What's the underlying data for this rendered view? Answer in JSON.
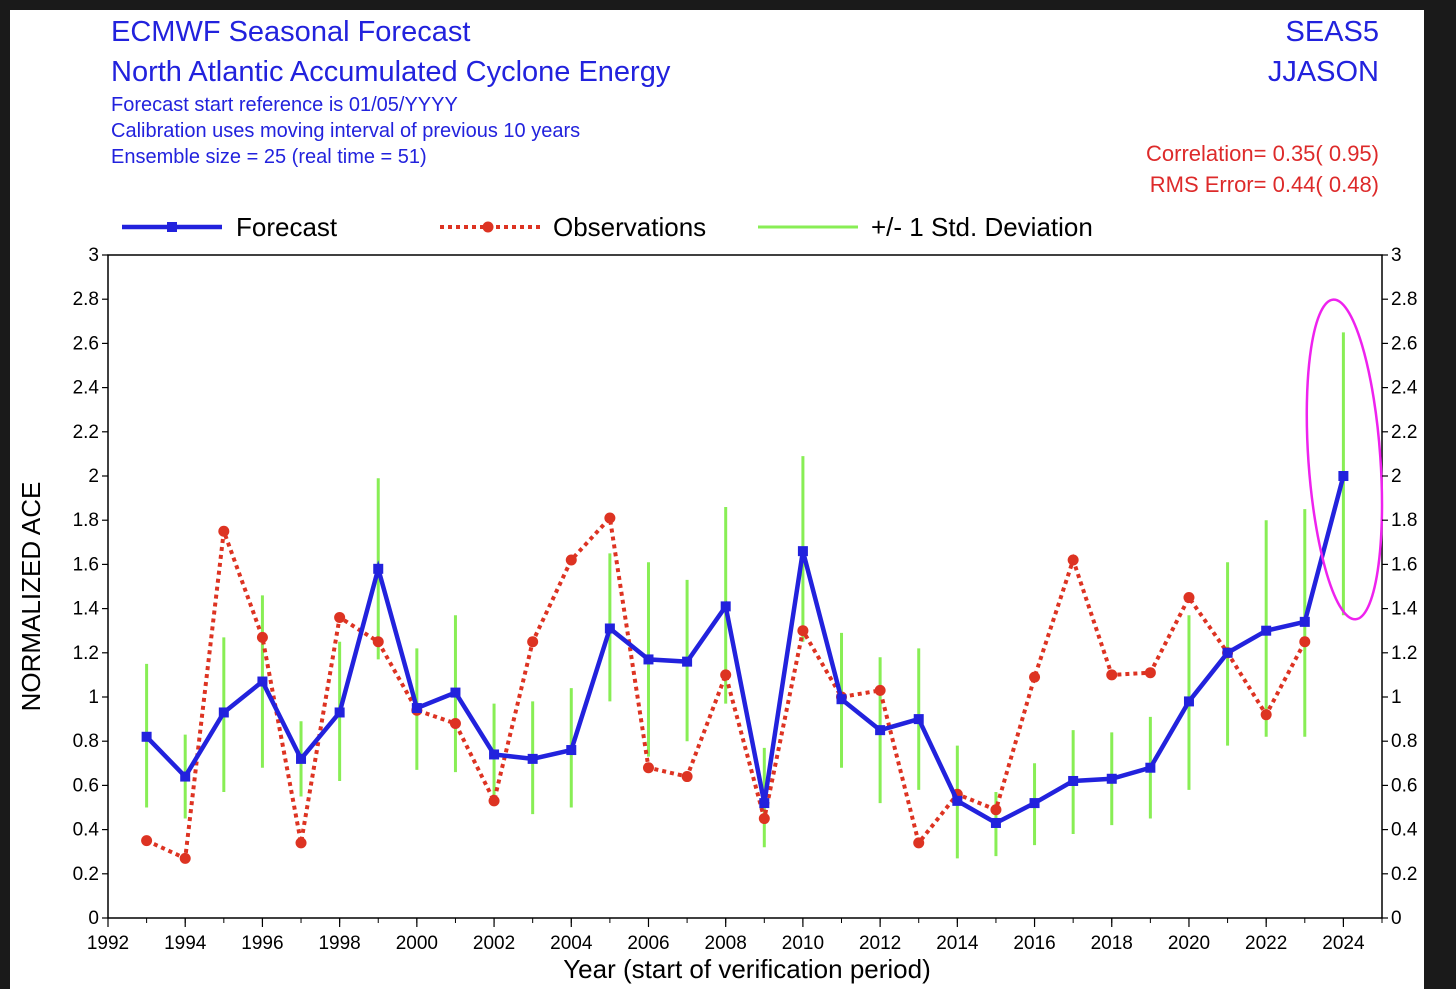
{
  "header": {
    "title1": "ECMWF Seasonal Forecast",
    "title2": "North Atlantic Accumulated Cyclone Energy",
    "line1": "Forecast start reference is 01/05/YYYY",
    "line2": "Calibration uses moving interval of previous 10 years",
    "line3": "Ensemble size =  25   (real time = 51)",
    "system": "SEAS5",
    "season": "JJASON",
    "correlation": "Correlation= 0.35( 0.95)",
    "rms": "RMS Error= 0.44( 0.48)"
  },
  "colors": {
    "forecast": "#2222dd",
    "observations": "#dd3322",
    "stddev": "#88ee55",
    "highlight": "#ee22ee",
    "header_text": "#2222dd",
    "stats_text": "#dd2a2a"
  },
  "chart_data": {
    "type": "line",
    "title": "North Atlantic Accumulated Cyclone Energy",
    "xlabel": "Year (start of verification period)",
    "ylabel": "NORMALIZED ACE",
    "xlim": [
      1992,
      2025
    ],
    "ylim": [
      0,
      3
    ],
    "x_ticks": [
      1992,
      1994,
      1996,
      1998,
      2000,
      2002,
      2004,
      2006,
      2008,
      2010,
      2012,
      2014,
      2016,
      2018,
      2020,
      2022,
      2024
    ],
    "y_ticks": [
      0,
      0.2,
      0.4,
      0.6,
      0.8,
      1,
      1.2,
      1.4,
      1.6,
      1.8,
      2,
      2.2,
      2.4,
      2.6,
      2.8,
      3
    ],
    "y_tick_labels": [
      "0",
      "0.2",
      "0.4",
      "0.6",
      "0.8",
      "1",
      "1.2",
      "1.4",
      "1.6",
      "1.8",
      "2",
      "2.2",
      "2.4",
      "2.6",
      "2.8",
      "3"
    ],
    "legend_position": "top",
    "series": [
      {
        "name": "Forecast",
        "style": "solid-square",
        "x": [
          1993,
          1994,
          1995,
          1996,
          1997,
          1998,
          1999,
          2000,
          2001,
          2002,
          2003,
          2004,
          2005,
          2006,
          2007,
          2008,
          2009,
          2010,
          2011,
          2012,
          2013,
          2014,
          2015,
          2016,
          2017,
          2018,
          2019,
          2020,
          2021,
          2022,
          2023,
          2024
        ],
        "y": [
          0.82,
          0.64,
          0.93,
          1.07,
          0.72,
          0.93,
          1.58,
          0.95,
          1.02,
          0.74,
          0.72,
          0.76,
          1.31,
          1.17,
          1.16,
          1.41,
          0.52,
          1.66,
          0.99,
          0.85,
          0.9,
          0.53,
          0.43,
          0.52,
          0.62,
          0.63,
          0.68,
          0.98,
          1.2,
          1.3,
          1.34,
          2.0
        ]
      },
      {
        "name": "Observations",
        "style": "dotted-circle",
        "x": [
          1993,
          1994,
          1995,
          1996,
          1997,
          1998,
          1999,
          2000,
          2001,
          2002,
          2003,
          2004,
          2005,
          2006,
          2007,
          2008,
          2009,
          2010,
          2011,
          2012,
          2013,
          2014,
          2015,
          2016,
          2017,
          2018,
          2019,
          2020,
          2021,
          2022,
          2023
        ],
        "y": [
          0.35,
          0.27,
          1.75,
          1.27,
          0.34,
          1.36,
          1.25,
          0.94,
          0.88,
          0.53,
          1.25,
          1.62,
          1.81,
          0.68,
          0.64,
          1.1,
          0.45,
          1.3,
          1.0,
          1.03,
          0.34,
          0.56,
          0.49,
          1.09,
          1.62,
          1.1,
          1.11,
          1.45,
          1.2,
          0.92,
          1.25
        ]
      },
      {
        "name": "+/- 1 Std. Deviation",
        "style": "vertical-bar",
        "x": [
          1993,
          1994,
          1995,
          1996,
          1997,
          1998,
          1999,
          2000,
          2001,
          2002,
          2003,
          2004,
          2005,
          2006,
          2007,
          2008,
          2009,
          2010,
          2011,
          2012,
          2013,
          2014,
          2015,
          2016,
          2017,
          2018,
          2019,
          2020,
          2021,
          2022,
          2023,
          2024
        ],
        "low": [
          0.5,
          0.45,
          0.57,
          0.68,
          0.55,
          0.62,
          1.17,
          0.67,
          0.66,
          0.52,
          0.47,
          0.5,
          0.98,
          0.73,
          0.8,
          0.97,
          0.32,
          1.25,
          0.68,
          0.52,
          0.58,
          0.27,
          0.28,
          0.33,
          0.38,
          0.42,
          0.45,
          0.58,
          0.78,
          0.82,
          0.82,
          1.37
        ],
        "high": [
          1.15,
          0.83,
          1.27,
          1.46,
          0.89,
          1.25,
          1.99,
          1.22,
          1.37,
          0.97,
          0.98,
          1.04,
          1.65,
          1.61,
          1.53,
          1.86,
          0.77,
          2.09,
          1.29,
          1.18,
          1.22,
          0.78,
          0.57,
          0.7,
          0.85,
          0.84,
          0.91,
          1.37,
          1.61,
          1.8,
          1.85,
          2.65
        ]
      }
    ],
    "annotation": {
      "type": "ellipse",
      "target_x": 2024,
      "y_range": [
        1.35,
        2.8
      ]
    }
  }
}
